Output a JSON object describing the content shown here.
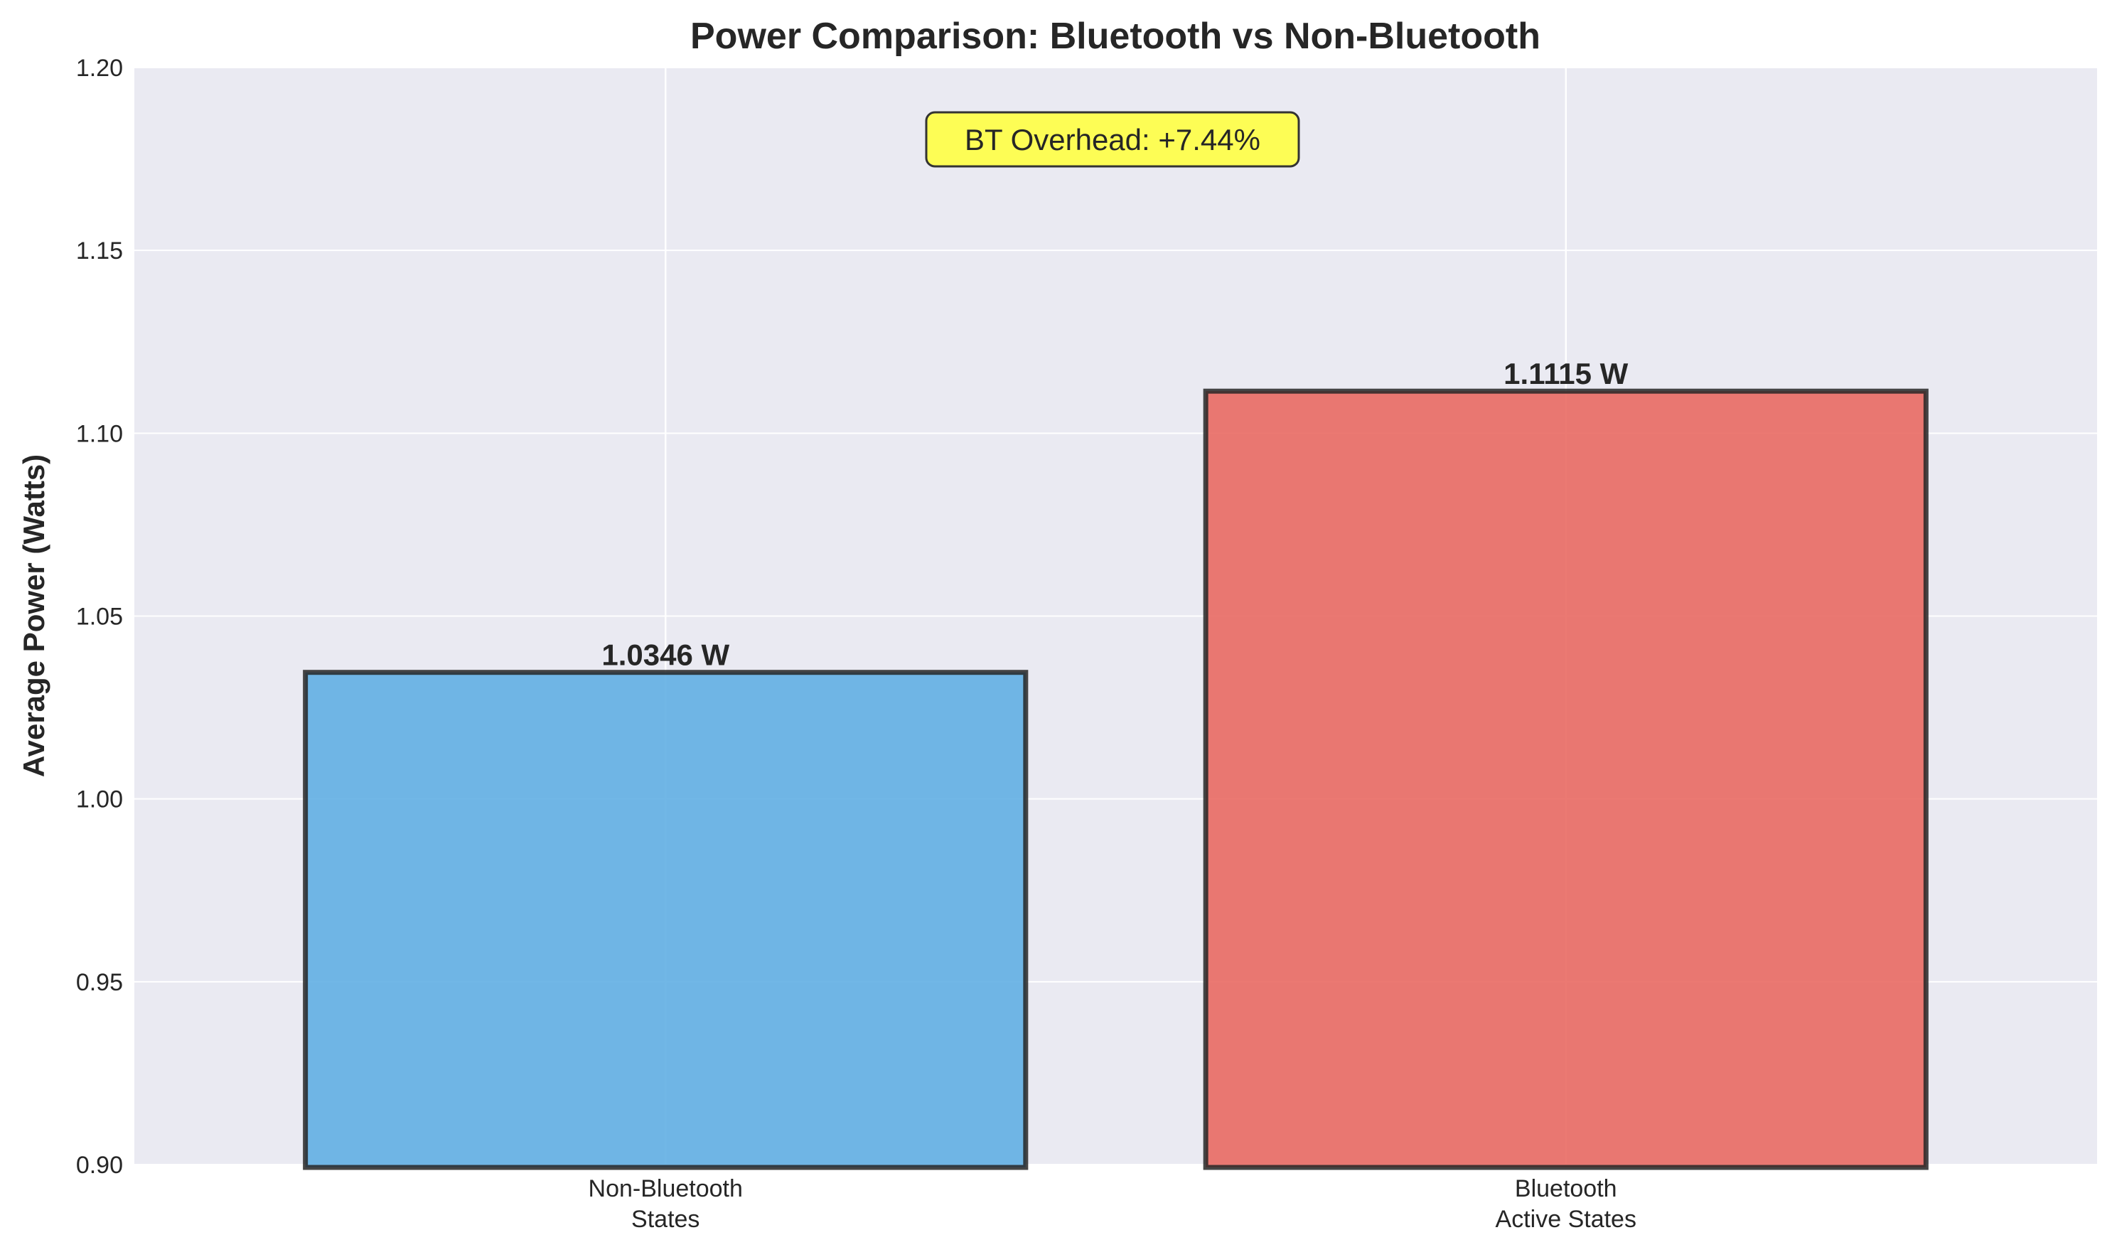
{
  "chart_data": {
    "type": "bar",
    "title": "Power Comparison: Bluetooth vs Non-Bluetooth",
    "xlabel": "",
    "ylabel": "Average Power (Watts)",
    "categories": [
      [
        "Non-Bluetooth",
        "States"
      ],
      [
        "Bluetooth",
        "Active States"
      ]
    ],
    "values": [
      1.0346,
      1.1115
    ],
    "value_labels": [
      "1.0346 W",
      "1.1115 W"
    ],
    "bar_colors": [
      "#5DADE2",
      "#E8675E"
    ],
    "ylim": [
      0.9,
      1.2
    ],
    "yticks": [
      0.9,
      0.95,
      1.0,
      1.05,
      1.1,
      1.15,
      1.2
    ],
    "ytick_labels": [
      "0.90",
      "0.95",
      "1.00",
      "1.05",
      "1.10",
      "1.15",
      "1.20"
    ],
    "grid": true,
    "annotation": "BT Overhead: +7.44%",
    "colors": {
      "plot_background": "#EAEAF2",
      "grid": "#FFFFFF",
      "bar_edge": "#262626",
      "annotation_fill": "#FFFF44"
    }
  }
}
